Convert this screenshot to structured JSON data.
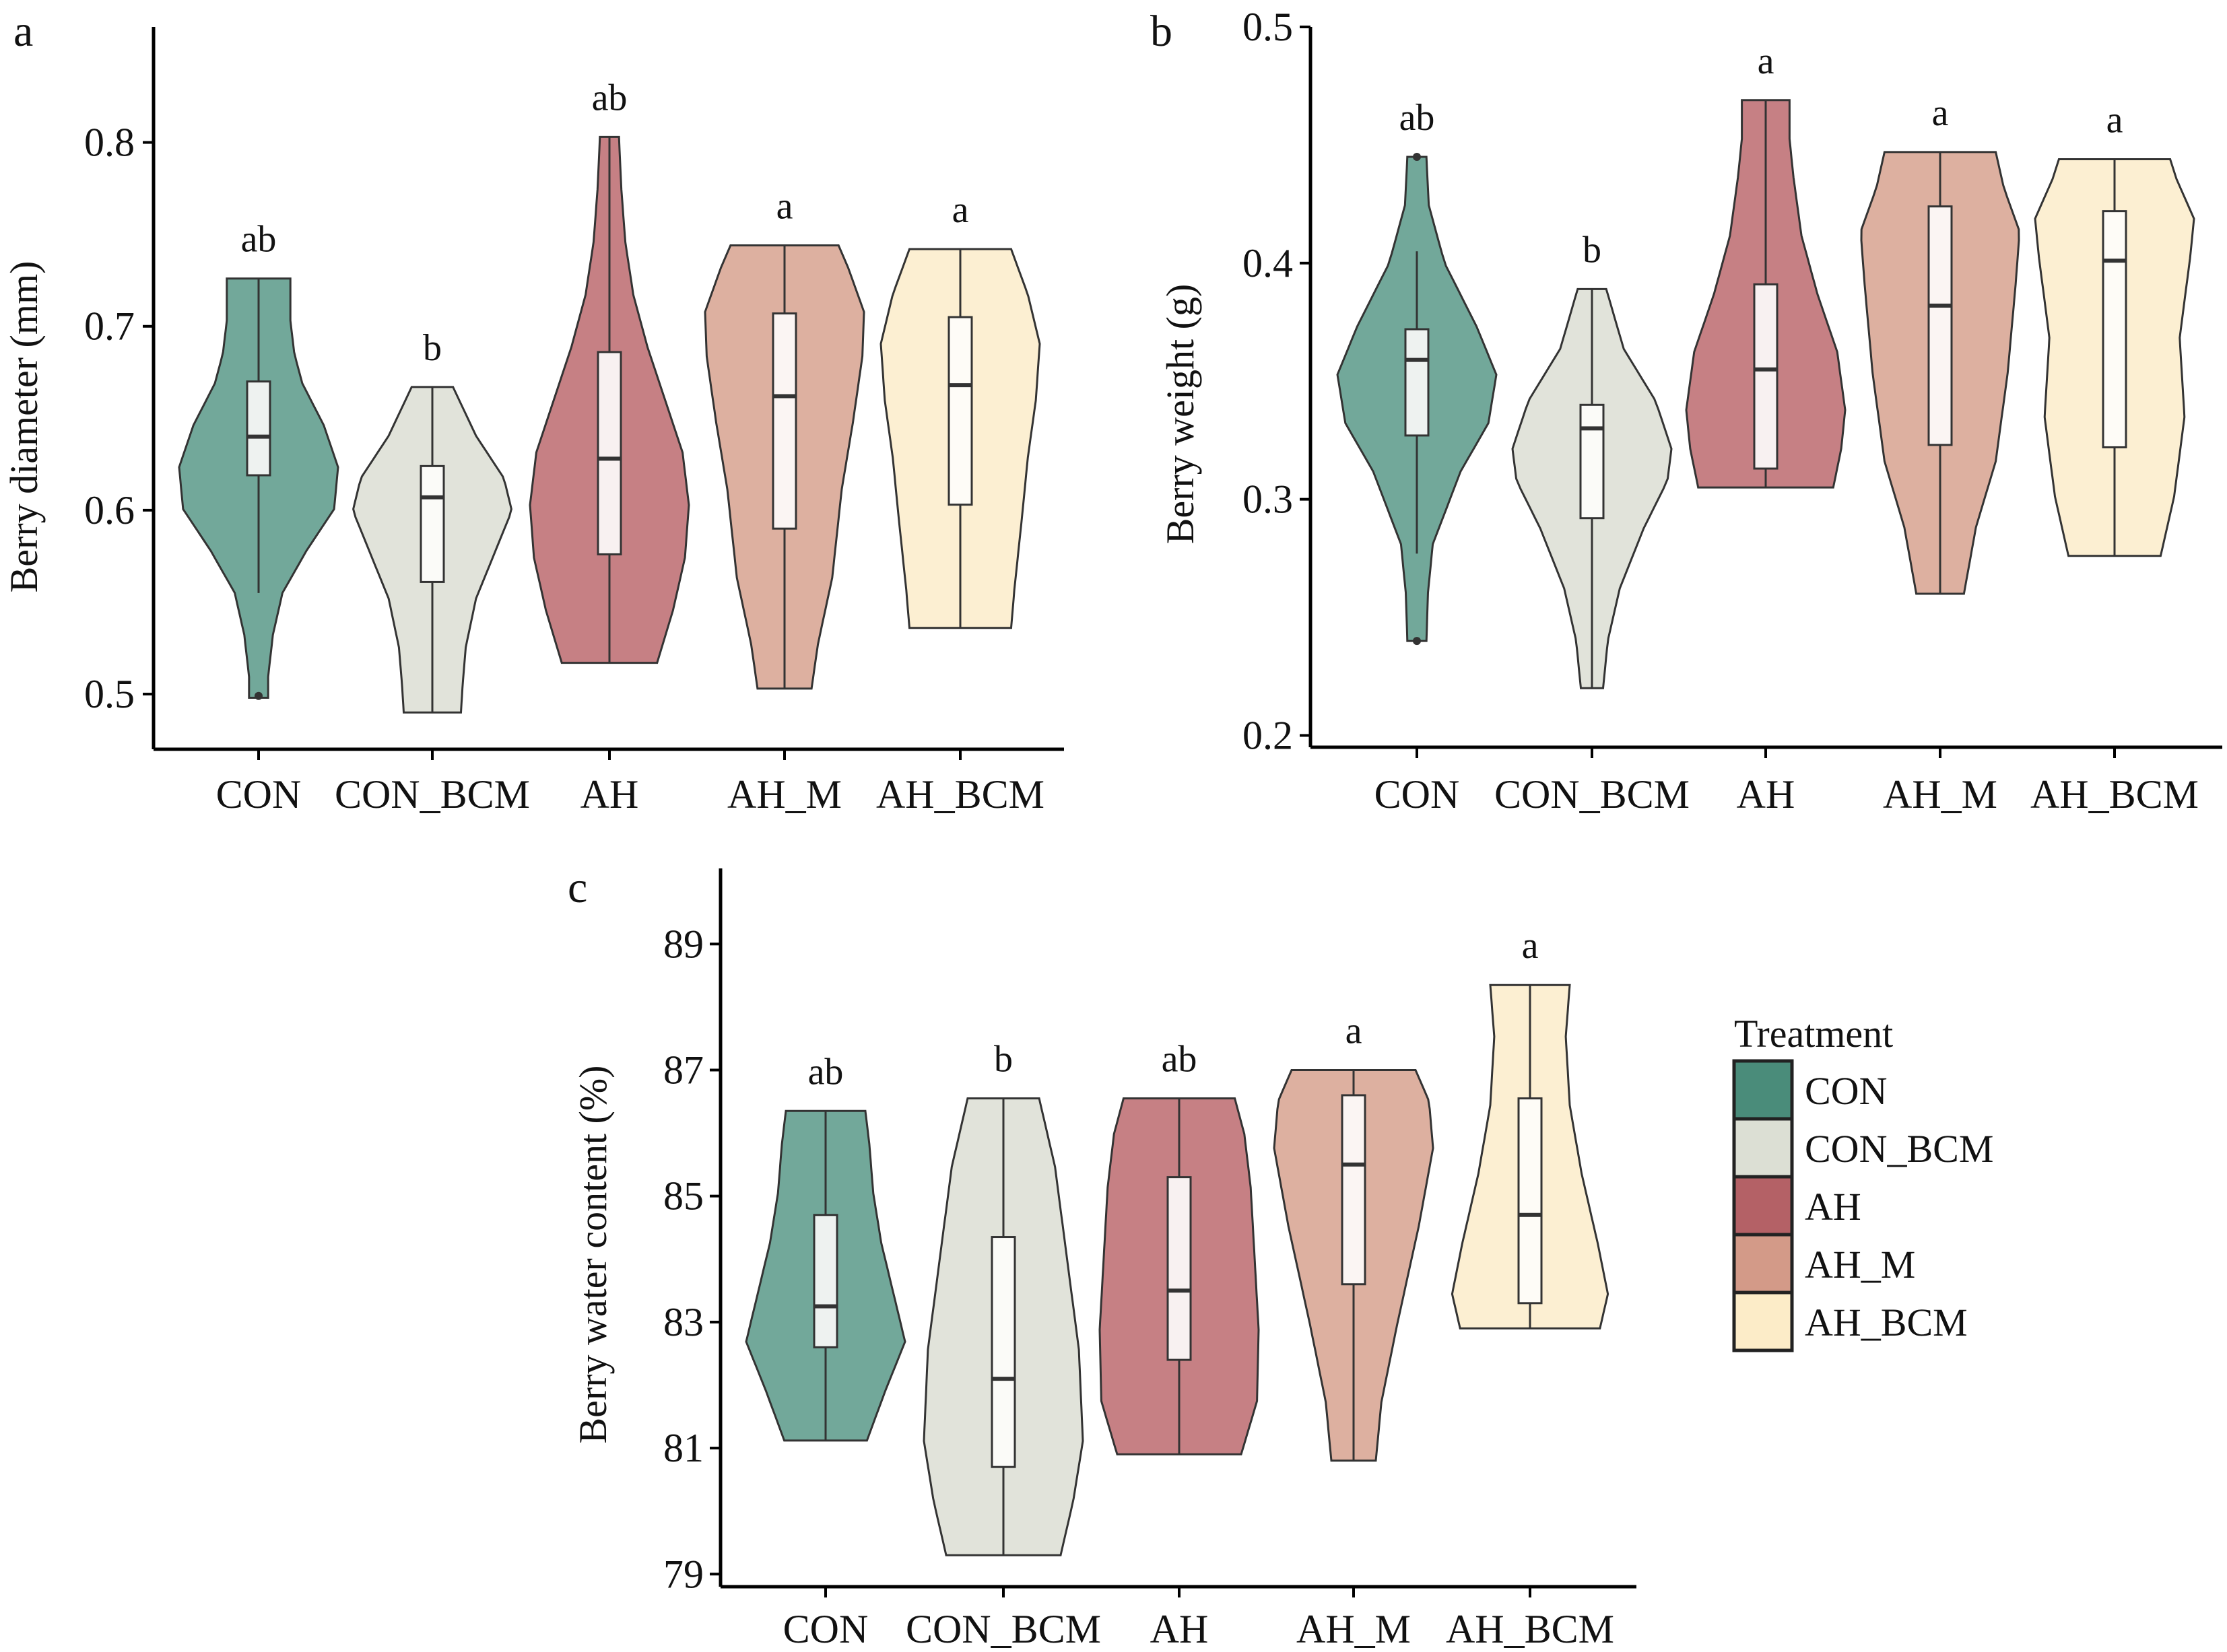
{
  "chart_data": [
    {
      "type": "violin",
      "panel": "a",
      "title": "",
      "xlabel": "",
      "ylabel": "Berry diameter (mm)",
      "ylim": [
        0.47,
        0.85
      ],
      "yticks": [
        0.5,
        0.6,
        0.7,
        0.8
      ],
      "ytick_labels": [
        "0.5",
        "0.6",
        "0.7",
        "0.8"
      ],
      "categories": [
        "CON",
        "CON_BCM",
        "AH",
        "AH_M",
        "AH_BCM"
      ],
      "groups": [
        {
          "name": "CON",
          "max": 0.726,
          "min": 0.498,
          "q3": 0.67,
          "median": 0.64,
          "q1": 0.619,
          "whisker_high": 0.726,
          "whisker_low": 0.555,
          "outliers": [
            0.499
          ],
          "letter": "ab"
        },
        {
          "name": "CON_BCM",
          "max": 0.667,
          "min": 0.49,
          "q3": 0.624,
          "median": 0.607,
          "q1": 0.561,
          "whisker_high": 0.667,
          "whisker_low": 0.49,
          "outliers": [],
          "letter": "b"
        },
        {
          "name": "AH",
          "max": 0.803,
          "min": 0.517,
          "q3": 0.686,
          "median": 0.628,
          "q1": 0.576,
          "whisker_high": 0.803,
          "whisker_low": 0.517,
          "outliers": [],
          "letter": "ab"
        },
        {
          "name": "AH_M",
          "max": 0.744,
          "min": 0.503,
          "q3": 0.707,
          "median": 0.662,
          "q1": 0.59,
          "whisker_high": 0.744,
          "whisker_low": 0.503,
          "outliers": [],
          "letter": "a"
        },
        {
          "name": "AH_BCM",
          "max": 0.742,
          "min": 0.536,
          "q3": 0.705,
          "median": 0.668,
          "q1": 0.603,
          "whisker_high": 0.742,
          "whisker_low": 0.536,
          "outliers": [],
          "letter": "a"
        }
      ]
    },
    {
      "type": "violin",
      "panel": "b",
      "title": "",
      "xlabel": "",
      "ylabel": "Berry weight (g)",
      "ylim": [
        0.195,
        0.5
      ],
      "yticks": [
        0.2,
        0.3,
        0.4,
        0.5
      ],
      "ytick_labels": [
        "0.2",
        "0.3",
        "0.4",
        "0.5"
      ],
      "categories": [
        "CON",
        "CON_BCM",
        "AH",
        "AH_M",
        "AH_BCM"
      ],
      "groups": [
        {
          "name": "CON",
          "max": 0.445,
          "min": 0.24,
          "q3": 0.372,
          "median": 0.359,
          "q1": 0.327,
          "whisker_high": 0.405,
          "whisker_low": 0.277,
          "outliers": [
            0.445,
            0.24
          ],
          "letter": "ab"
        },
        {
          "name": "CON_BCM",
          "max": 0.389,
          "min": 0.22,
          "q3": 0.34,
          "median": 0.33,
          "q1": 0.292,
          "whisker_high": 0.389,
          "whisker_low": 0.22,
          "outliers": [],
          "letter": "b"
        },
        {
          "name": "AH",
          "max": 0.469,
          "min": 0.305,
          "q3": 0.391,
          "median": 0.355,
          "q1": 0.313,
          "whisker_high": 0.469,
          "whisker_low": 0.305,
          "outliers": [],
          "letter": "a"
        },
        {
          "name": "AH_M",
          "max": 0.447,
          "min": 0.26,
          "q3": 0.424,
          "median": 0.382,
          "q1": 0.323,
          "whisker_high": 0.447,
          "whisker_low": 0.26,
          "outliers": [],
          "letter": "a"
        },
        {
          "name": "AH_BCM",
          "max": 0.444,
          "min": 0.276,
          "q3": 0.422,
          "median": 0.401,
          "q1": 0.322,
          "whisker_high": 0.444,
          "whisker_low": 0.276,
          "outliers": [],
          "letter": "a"
        }
      ]
    },
    {
      "type": "violin",
      "panel": "c",
      "title": "",
      "xlabel": "",
      "ylabel": "Berry water content (%)",
      "ylim": [
        78.8,
        90.2
      ],
      "yticks": [
        79,
        81,
        83,
        85,
        87,
        89
      ],
      "ytick_labels": [
        "79",
        "81",
        "83",
        "85",
        "87",
        "89"
      ],
      "categories": [
        "CON",
        "CON_BCM",
        "AH",
        "AH_M",
        "AH_BCM"
      ],
      "groups": [
        {
          "name": "CON",
          "max": 86.35,
          "min": 81.12,
          "q3": 84.7,
          "median": 83.25,
          "q1": 82.6,
          "whisker_high": 86.35,
          "whisker_low": 81.12,
          "outliers": [],
          "letter": "ab"
        },
        {
          "name": "CON_BCM",
          "max": 86.55,
          "min": 79.3,
          "q3": 84.35,
          "median": 82.1,
          "q1": 80.7,
          "whisker_high": 86.55,
          "whisker_low": 79.3,
          "outliers": [],
          "letter": "b"
        },
        {
          "name": "AH",
          "max": 86.55,
          "min": 80.9,
          "q3": 85.3,
          "median": 83.5,
          "q1": 82.4,
          "whisker_high": 86.55,
          "whisker_low": 80.9,
          "outliers": [],
          "letter": "ab"
        },
        {
          "name": "AH_M",
          "max": 87.0,
          "min": 80.8,
          "q3": 86.6,
          "median": 85.5,
          "q1": 83.6,
          "whisker_high": 87.0,
          "whisker_low": 80.8,
          "outliers": [],
          "letter": "a"
        },
        {
          "name": "AH_BCM",
          "max": 88.35,
          "min": 82.9,
          "q3": 86.55,
          "median": 84.7,
          "q1": 83.3,
          "whisker_high": 88.35,
          "whisker_low": 82.9,
          "outliers": [],
          "letter": "a"
        }
      ]
    }
  ],
  "legend": {
    "title": "Treatment",
    "placement": "right",
    "items": [
      {
        "label": "CON",
        "color": "#4a8c7a"
      },
      {
        "label": "CON_BCM",
        "color": "#dcdfd4"
      },
      {
        "label": "AH",
        "color": "#b46166"
      },
      {
        "label": "AH_M",
        "color": "#d39a88"
      },
      {
        "label": "AH_BCM",
        "color": "#fcecc8"
      }
    ]
  },
  "violin_colors": [
    "#72a89a",
    "#e1e3da",
    "#c68084",
    "#ddb0a0",
    "#fcefd2"
  ],
  "box_colors": [
    "#eef2f0",
    "#fbfbf8",
    "#f8f1f1",
    "#fbf5f3",
    "#fefcf7"
  ]
}
